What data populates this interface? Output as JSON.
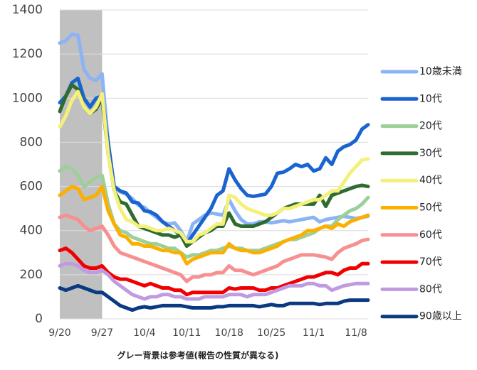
{
  "chart_data": {
    "type": "line",
    "note": "グレー背景は参考値(報告の性質が異なる)",
    "categories": [
      "9/20",
      null,
      null,
      null,
      null,
      null,
      null,
      "9/27",
      null,
      null,
      null,
      null,
      null,
      null,
      "10/4",
      null,
      null,
      null,
      null,
      null,
      null,
      "10/11",
      null,
      null,
      null,
      null,
      null,
      null,
      "10/18",
      null,
      null,
      null,
      null,
      null,
      null,
      "10/25",
      null,
      null,
      null,
      null,
      null,
      null,
      "11/1",
      null,
      null,
      null,
      null,
      null,
      null,
      "11/8",
      null,
      null
    ],
    "shade": [
      0,
      7
    ],
    "ylim": [
      0,
      1400
    ],
    "yticks": [
      0,
      200,
      400,
      600,
      800,
      1000,
      1200,
      1400
    ],
    "grid": true,
    "legend": "right",
    "series": [
      {
        "name": "10歳未満",
        "color": "#8cb4f5",
        "values": [
          1250,
          1260,
          1290,
          1285,
          1130,
          1090,
          1080,
          1110,
          800,
          600,
          575,
          565,
          545,
          515,
          505,
          480,
          460,
          440,
          430,
          435,
          400,
          350,
          430,
          450,
          470,
          480,
          475,
          470,
          540,
          490,
          450,
          430,
          430,
          440,
          440,
          435,
          440,
          445,
          440,
          445,
          450,
          455,
          460,
          440,
          450,
          455,
          460,
          465,
          460,
          455,
          460,
          465
        ]
      },
      {
        "name": "10代",
        "color": "#1a64d0",
        "values": [
          980,
          1010,
          1070,
          1090,
          1000,
          960,
          1000,
          1010,
          800,
          600,
          580,
          570,
          530,
          525,
          490,
          485,
          470,
          440,
          420,
          400,
          380,
          340,
          380,
          420,
          460,
          500,
          560,
          580,
          680,
          630,
          590,
          560,
          555,
          560,
          565,
          600,
          660,
          665,
          680,
          700,
          690,
          700,
          670,
          680,
          730,
          700,
          760,
          780,
          790,
          810,
          860,
          880
        ]
      },
      {
        "name": "20代",
        "color": "#9ccf9a",
        "values": [
          670,
          690,
          680,
          650,
          600,
          620,
          640,
          650,
          520,
          430,
          400,
          390,
          370,
          360,
          350,
          340,
          340,
          330,
          320,
          320,
          300,
          280,
          290,
          290,
          300,
          310,
          310,
          320,
          330,
          320,
          320,
          310,
          310,
          310,
          320,
          330,
          340,
          350,
          360,
          360,
          370,
          380,
          390,
          410,
          420,
          420,
          450,
          470,
          490,
          500,
          520,
          550
        ]
      },
      {
        "name": "30代",
        "color": "#2e6b2e",
        "values": [
          940,
          1010,
          1060,
          1040,
          960,
          930,
          950,
          1000,
          750,
          580,
          530,
          520,
          470,
          420,
          410,
          400,
          390,
          380,
          380,
          370,
          380,
          330,
          350,
          370,
          390,
          400,
          420,
          420,
          480,
          430,
          420,
          420,
          420,
          430,
          440,
          460,
          480,
          500,
          510,
          520,
          520,
          520,
          520,
          560,
          510,
          560,
          570,
          580,
          590,
          600,
          605,
          600
        ]
      },
      {
        "name": "40代",
        "color": "#f5f07a",
        "values": [
          870,
          920,
          990,
          1030,
          960,
          930,
          960,
          1020,
          750,
          580,
          500,
          450,
          440,
          420,
          420,
          410,
          400,
          400,
          410,
          400,
          390,
          350,
          350,
          380,
          390,
          410,
          430,
          430,
          560,
          550,
          520,
          500,
          490,
          480,
          470,
          470,
          480,
          500,
          500,
          510,
          520,
          530,
          540,
          540,
          560,
          580,
          580,
          620,
          660,
          690,
          720,
          725
        ]
      },
      {
        "name": "50代",
        "color": "#fbb000",
        "values": [
          560,
          580,
          600,
          590,
          540,
          550,
          560,
          600,
          490,
          430,
          380,
          370,
          340,
          340,
          330,
          330,
          320,
          310,
          310,
          300,
          300,
          250,
          270,
          280,
          290,
          300,
          300,
          300,
          340,
          320,
          310,
          310,
          300,
          300,
          310,
          320,
          330,
          350,
          360,
          370,
          380,
          400,
          400,
          410,
          420,
          410,
          430,
          420,
          440,
          450,
          460,
          470
        ]
      },
      {
        "name": "60代",
        "color": "#f79090",
        "values": [
          460,
          470,
          460,
          450,
          420,
          400,
          410,
          420,
          380,
          330,
          300,
          290,
          280,
          270,
          260,
          250,
          240,
          230,
          220,
          210,
          200,
          170,
          190,
          190,
          200,
          200,
          210,
          210,
          240,
          220,
          220,
          210,
          200,
          210,
          220,
          230,
          240,
          260,
          270,
          280,
          290,
          290,
          290,
          285,
          280,
          270,
          300,
          320,
          330,
          340,
          355,
          360
        ]
      },
      {
        "name": "70代",
        "color": "#f00000",
        "values": [
          310,
          320,
          300,
          270,
          240,
          230,
          230,
          240,
          210,
          190,
          180,
          180,
          170,
          160,
          150,
          160,
          150,
          140,
          140,
          130,
          130,
          110,
          120,
          120,
          120,
          120,
          120,
          120,
          140,
          135,
          140,
          140,
          140,
          130,
          130,
          140,
          140,
          150,
          160,
          170,
          180,
          190,
          190,
          200,
          210,
          210,
          200,
          220,
          230,
          230,
          250,
          250
        ]
      },
      {
        "name": "80代",
        "color": "#c09be0",
        "values": [
          240,
          250,
          250,
          240,
          220,
          210,
          210,
          220,
          200,
          170,
          150,
          130,
          110,
          100,
          90,
          100,
          100,
          110,
          110,
          100,
          100,
          90,
          90,
          90,
          100,
          100,
          100,
          100,
          110,
          110,
          110,
          100,
          110,
          110,
          110,
          120,
          130,
          140,
          150,
          150,
          150,
          160,
          160,
          150,
          150,
          130,
          140,
          150,
          155,
          160,
          160,
          160
        ]
      },
      {
        "name": "90歳以上",
        "color": "#0a3a80",
        "values": [
          140,
          130,
          140,
          150,
          140,
          130,
          120,
          120,
          100,
          80,
          60,
          50,
          40,
          50,
          55,
          50,
          55,
          60,
          60,
          60,
          60,
          55,
          50,
          50,
          50,
          50,
          55,
          55,
          60,
          60,
          60,
          60,
          60,
          55,
          60,
          65,
          60,
          60,
          70,
          70,
          70,
          70,
          70,
          65,
          70,
          70,
          70,
          80,
          85,
          85,
          85,
          85
        ]
      }
    ]
  }
}
